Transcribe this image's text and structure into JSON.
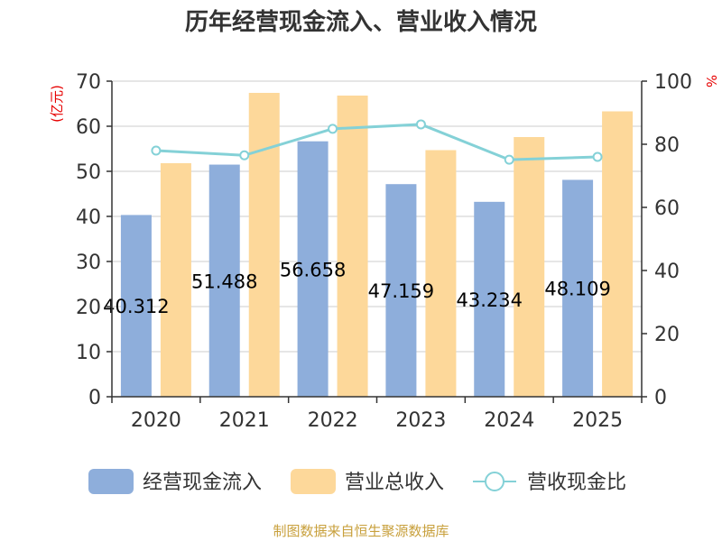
{
  "chart_data": {
    "type": "bar",
    "title": "历年经营现金流入、营业收入情况",
    "categories": [
      "2020",
      "2021",
      "2022",
      "2023",
      "2024",
      "2025"
    ],
    "y_left": {
      "label": "(亿元)",
      "ylim": [
        0,
        70
      ],
      "ticks": [
        0,
        10,
        20,
        30,
        40,
        50,
        60,
        70
      ]
    },
    "y_right": {
      "label": "%",
      "ylim": [
        0,
        100
      ],
      "ticks": [
        0,
        20,
        40,
        60,
        80,
        100
      ]
    },
    "series": [
      {
        "name": "经营现金流入",
        "type": "bar",
        "axis": "left",
        "color": "#8eaedb",
        "values": [
          40.312,
          51.488,
          56.658,
          47.159,
          43.234,
          48.109
        ],
        "labels": [
          "40.312",
          "51.488",
          "56.658",
          "47.159",
          "43.234",
          "48.109"
        ]
      },
      {
        "name": "营业总收入",
        "type": "bar",
        "axis": "left",
        "color": "#fdd89a",
        "values": [
          51.8,
          67.4,
          66.8,
          54.7,
          57.6,
          63.3
        ]
      },
      {
        "name": "营收现金比",
        "type": "line",
        "axis": "right",
        "color": "#84d1d7",
        "values": [
          78.0,
          76.5,
          84.9,
          86.3,
          75.1,
          76.0
        ]
      }
    ],
    "grid": true,
    "legend": "bottom"
  },
  "footer": {
    "source": "制图数据来自恒生聚源数据库"
  }
}
